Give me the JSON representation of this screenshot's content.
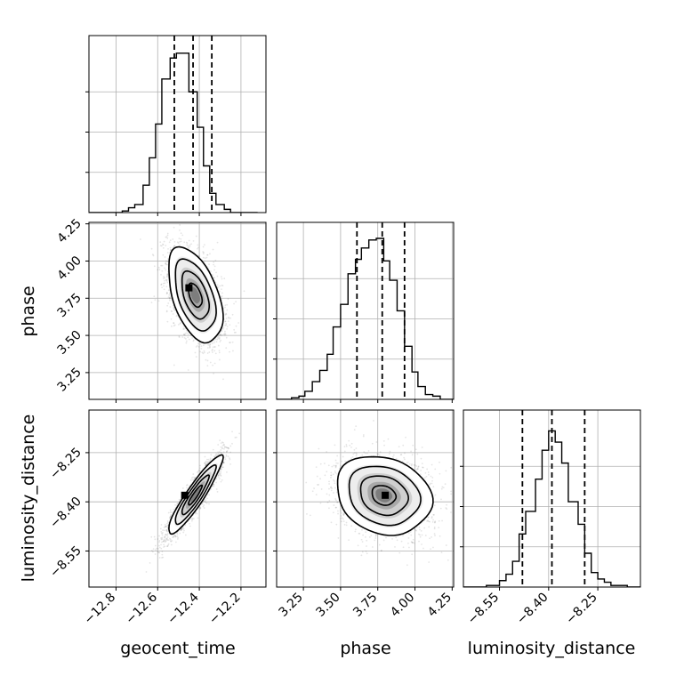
{
  "chart_data": {
    "type": "corner",
    "parameters": [
      "geocent_time",
      "phase",
      "luminosity_distance"
    ],
    "grid": true,
    "quantiles": [
      0.16,
      0.5,
      0.84
    ],
    "axis_ranges": {
      "geocent_time": [
        -12.93,
        -12.08
      ],
      "phase": [
        3.07,
        4.26
      ],
      "luminosity_distance": [
        -8.66,
        -8.12
      ]
    },
    "ticks": {
      "geocent_time": [
        -12.8,
        -12.6,
        -12.4,
        -12.2
      ],
      "phase": [
        3.25,
        3.5,
        3.75,
        4.0,
        4.25
      ],
      "luminosity_distance": [
        -8.55,
        -8.4,
        -8.25
      ]
    },
    "tick_labels": {
      "geocent_time": [
        "−12.8",
        "−12.6",
        "−12.4",
        "−12.2"
      ],
      "phase": [
        "3.25",
        "3.50",
        "3.75",
        "4.00",
        "4.25"
      ],
      "luminosity_distance": [
        "−8.55",
        "−8.40",
        "−8.25"
      ]
    },
    "histograms": [
      {
        "parameter": "geocent_time",
        "bin_edges": [
          -12.93,
          -12.9,
          -12.87,
          -12.84,
          -12.8,
          -12.77,
          -12.74,
          -12.71,
          -12.67,
          -12.64,
          -12.61,
          -12.58,
          -12.54,
          -12.51,
          -12.48,
          -12.45,
          -12.41,
          -12.38,
          -12.35,
          -12.32,
          -12.28,
          -12.25,
          -12.22,
          -12.19,
          -12.15,
          -12.12
        ],
        "relative_counts": [
          0,
          0,
          0,
          0,
          0,
          0.01,
          0.03,
          0.05,
          0.17,
          0.34,
          0.55,
          0.83,
          0.96,
          0.99,
          0.99,
          0.75,
          0.53,
          0.29,
          0.12,
          0.05,
          0.02,
          0,
          0,
          0,
          0
        ],
        "quantile_values": [
          -12.52,
          -12.43,
          -12.34
        ]
      },
      {
        "parameter": "phase",
        "bin_edges": [
          3.07,
          3.12,
          3.17,
          3.22,
          3.26,
          3.31,
          3.36,
          3.41,
          3.45,
          3.5,
          3.55,
          3.6,
          3.64,
          3.69,
          3.74,
          3.79,
          3.83,
          3.88,
          3.93,
          3.98,
          4.02,
          4.07,
          4.12,
          4.17,
          4.21,
          4.26
        ],
        "relative_counts": [
          0,
          0,
          0.01,
          0.02,
          0.05,
          0.11,
          0.18,
          0.28,
          0.45,
          0.59,
          0.78,
          0.87,
          0.94,
          0.99,
          1.0,
          0.86,
          0.74,
          0.55,
          0.33,
          0.17,
          0.08,
          0.03,
          0.02,
          0,
          0
        ],
        "quantile_values": [
          3.61,
          3.78,
          3.93
        ]
      },
      {
        "parameter": "luminosity_distance",
        "bin_edges": [
          -8.66,
          -8.64,
          -8.62,
          -8.59,
          -8.57,
          -8.55,
          -8.53,
          -8.51,
          -8.49,
          -8.47,
          -8.44,
          -8.42,
          -8.4,
          -8.38,
          -8.36,
          -8.34,
          -8.31,
          -8.29,
          -8.27,
          -8.25,
          -8.23,
          -8.21,
          -8.18,
          -8.16,
          -8.14,
          -8.12
        ],
        "relative_counts": [
          0,
          0,
          0,
          0.01,
          0.01,
          0.04,
          0.08,
          0.16,
          0.33,
          0.47,
          0.67,
          0.85,
          0.97,
          0.9,
          0.77,
          0.53,
          0.39,
          0.21,
          0.09,
          0.05,
          0.03,
          0.01,
          0.01,
          0,
          0
        ],
        "quantile_values": [
          -8.48,
          -8.39,
          -8.29
        ]
      }
    ],
    "density_panels": [
      {
        "x": "geocent_time",
        "y": "phase",
        "mean": [
          -12.42,
          3.77
        ],
        "std": [
          0.065,
          0.16
        ],
        "correlation": -0.48,
        "mode": [
          -12.45,
          3.82
        ]
      },
      {
        "x": "geocent_time",
        "y": "luminosity_distance",
        "mean": [
          -12.42,
          -8.38
        ],
        "std": [
          0.065,
          0.06
        ],
        "correlation": 0.92,
        "mode": [
          -12.47,
          -8.38
        ]
      },
      {
        "x": "phase",
        "y": "luminosity_distance",
        "mean": [
          3.79,
          -8.38
        ],
        "std": [
          0.16,
          0.06
        ],
        "correlation": -0.18,
        "mode": [
          3.8,
          -8.38
        ]
      }
    ]
  }
}
